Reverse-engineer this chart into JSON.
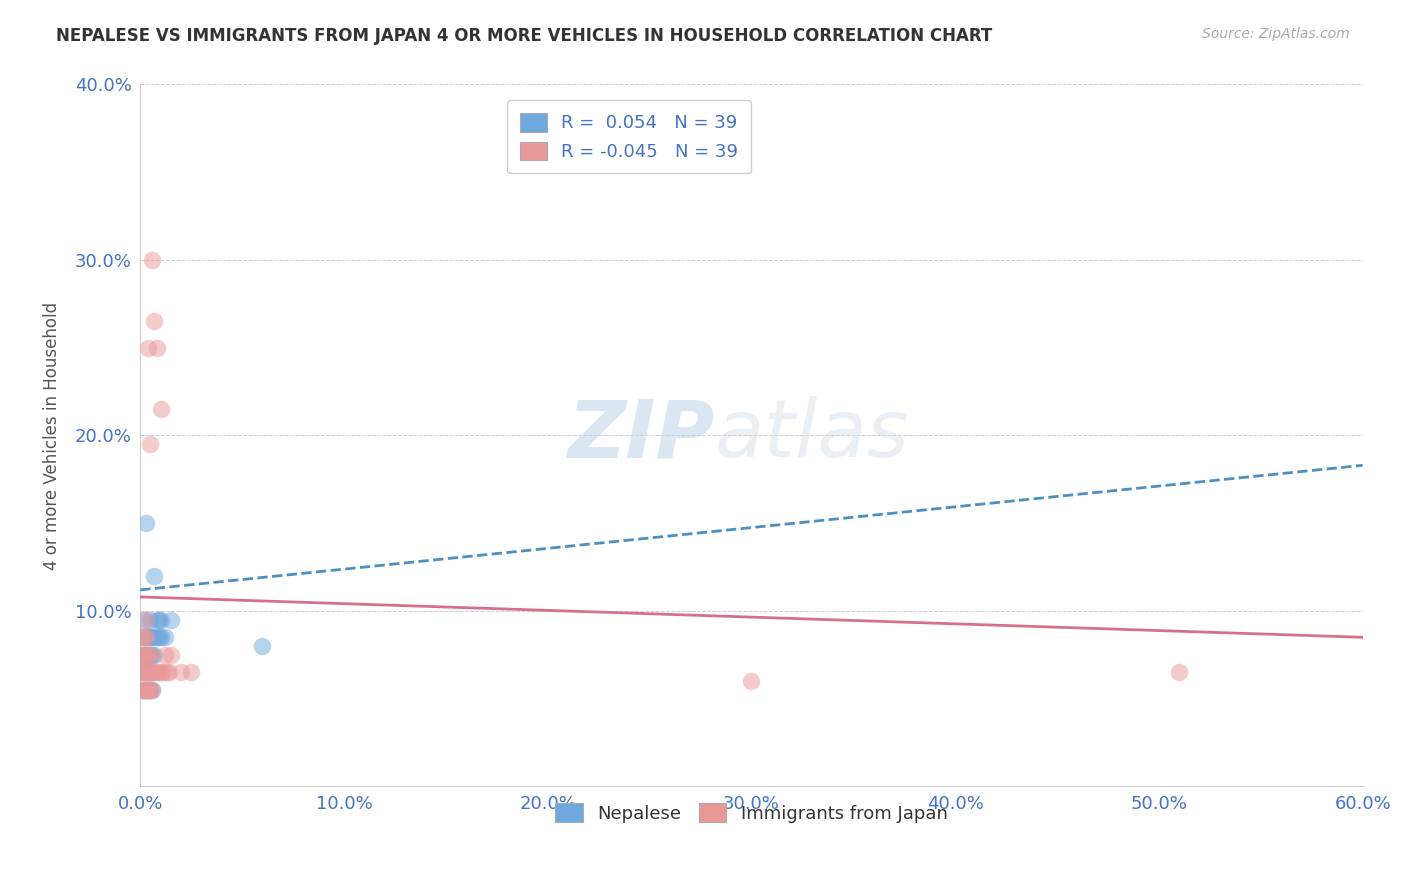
{
  "title": "NEPALESE VS IMMIGRANTS FROM JAPAN 4 OR MORE VEHICLES IN HOUSEHOLD CORRELATION CHART",
  "source": "Source: ZipAtlas.com",
  "ylabel": "4 or more Vehicles in Household",
  "xlabel": "",
  "xlim": [
    0.0,
    0.6
  ],
  "ylim": [
    0.0,
    0.4
  ],
  "xticks": [
    0.0,
    0.1,
    0.2,
    0.3,
    0.4,
    0.5,
    0.6
  ],
  "yticks": [
    0.0,
    0.1,
    0.2,
    0.3,
    0.4
  ],
  "xtick_labels": [
    "0.0%",
    "10.0%",
    "20.0%",
    "30.0%",
    "40.0%",
    "50.0%",
    "60.0%"
  ],
  "ytick_labels": [
    "",
    "10.0%",
    "20.0%",
    "30.0%",
    "40.0%"
  ],
  "legend_r_blue": "0.054",
  "legend_r_pink": "-0.045",
  "legend_n": "39",
  "blue_color": "#6fa8dc",
  "pink_color": "#ea9999",
  "watermark_zip": "ZIP",
  "watermark_atlas": "atlas",
  "blue_trend_start_y": 0.112,
  "blue_trend_end_y": 0.183,
  "pink_trend_start_y": 0.108,
  "pink_trend_end_y": 0.085,
  "nepalese_x": [
    0.001,
    0.001,
    0.001,
    0.001,
    0.002,
    0.002,
    0.002,
    0.002,
    0.002,
    0.003,
    0.003,
    0.003,
    0.003,
    0.003,
    0.004,
    0.004,
    0.004,
    0.004,
    0.005,
    0.005,
    0.005,
    0.005,
    0.005,
    0.006,
    0.006,
    0.006,
    0.006,
    0.007,
    0.007,
    0.007,
    0.008,
    0.008,
    0.009,
    0.009,
    0.01,
    0.01,
    0.012,
    0.015,
    0.06
  ],
  "nepalese_y": [
    0.055,
    0.065,
    0.075,
    0.085,
    0.055,
    0.065,
    0.075,
    0.085,
    0.095,
    0.055,
    0.065,
    0.075,
    0.085,
    0.15,
    0.055,
    0.065,
    0.075,
    0.085,
    0.055,
    0.065,
    0.075,
    0.085,
    0.095,
    0.055,
    0.065,
    0.075,
    0.085,
    0.075,
    0.085,
    0.12,
    0.085,
    0.095,
    0.085,
    0.095,
    0.085,
    0.095,
    0.085,
    0.095,
    0.08
  ],
  "japan_x": [
    0.001,
    0.001,
    0.001,
    0.001,
    0.002,
    0.002,
    0.002,
    0.002,
    0.003,
    0.003,
    0.003,
    0.003,
    0.003,
    0.004,
    0.004,
    0.004,
    0.004,
    0.005,
    0.005,
    0.005,
    0.005,
    0.006,
    0.006,
    0.007,
    0.007,
    0.008,
    0.008,
    0.009,
    0.01,
    0.01,
    0.011,
    0.012,
    0.013,
    0.014,
    0.015,
    0.02,
    0.025,
    0.3,
    0.51
  ],
  "japan_y": [
    0.055,
    0.065,
    0.075,
    0.085,
    0.055,
    0.065,
    0.075,
    0.085,
    0.055,
    0.065,
    0.075,
    0.085,
    0.095,
    0.055,
    0.065,
    0.075,
    0.25,
    0.055,
    0.065,
    0.075,
    0.195,
    0.055,
    0.3,
    0.065,
    0.265,
    0.065,
    0.25,
    0.065,
    0.065,
    0.215,
    0.065,
    0.075,
    0.065,
    0.065,
    0.075,
    0.065,
    0.065,
    0.06,
    0.065
  ]
}
